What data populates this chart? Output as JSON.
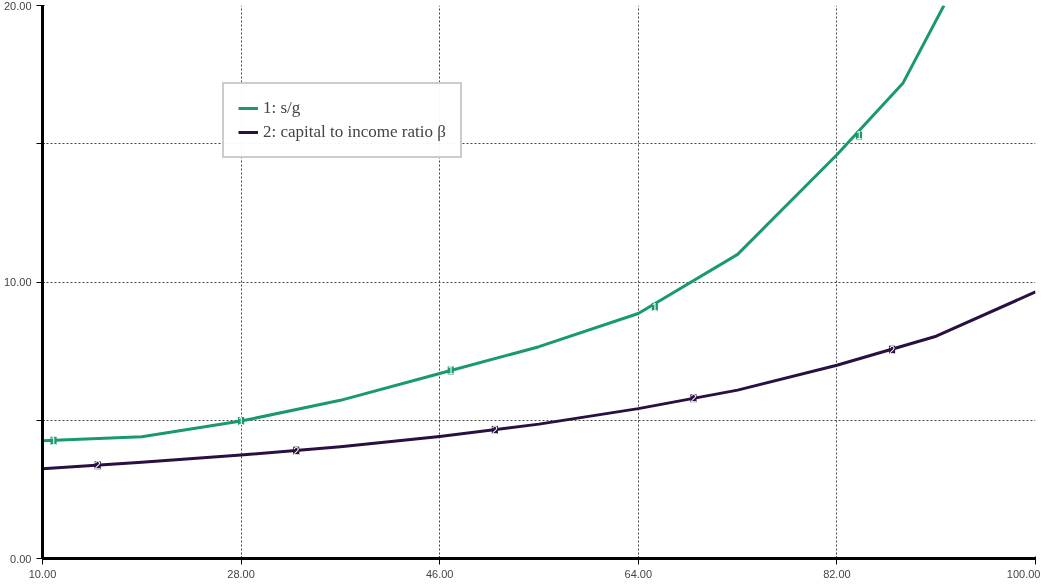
{
  "chart_data": {
    "type": "line",
    "x": [
      10,
      19,
      28,
      37,
      46,
      55,
      64,
      73,
      82,
      88,
      91.7
    ],
    "series": [
      {
        "name": "1: s/g",
        "color": "#1a9a6a",
        "values": [
          4.26,
          4.4,
          4.97,
          5.72,
          6.69,
          7.66,
          8.86,
          11.0,
          14.6,
          17.2,
          20
        ]
      },
      {
        "name": "2: capital to income ratio β",
        "color": "#2a1040",
        "x": [
          10,
          19,
          28,
          37,
          46,
          55,
          64,
          73,
          82,
          91,
          100
        ],
        "values": [
          3.25,
          3.48,
          3.74,
          4.04,
          4.41,
          4.86,
          5.42,
          6.09,
          6.99,
          8.04,
          9.64
        ]
      }
    ],
    "xlim": [
      10,
      100
    ],
    "ylim": [
      0,
      20
    ],
    "xticks": [
      {
        "value": 10,
        "label": "10.00"
      },
      {
        "value": 28,
        "label": "28.00"
      },
      {
        "value": 46,
        "label": "46.00"
      },
      {
        "value": 64,
        "label": "64.00"
      },
      {
        "value": 82,
        "label": "82.00"
      },
      {
        "value": 100,
        "label": "100.00"
      }
    ],
    "yticks": [
      {
        "value": 0,
        "label": "0.00"
      },
      {
        "value": 5,
        "label": null
      },
      {
        "value": 10,
        "label": "10.00"
      },
      {
        "value": 15,
        "label": null
      },
      {
        "value": 20,
        "label": "20.00"
      }
    ],
    "annotations": [
      {
        "text": "1",
        "x": 11,
        "y": 4.26
      },
      {
        "text": "1",
        "x": 28,
        "y": 4.97
      },
      {
        "text": "1",
        "x": 47,
        "y": 6.8
      },
      {
        "text": "1",
        "x": 65.5,
        "y": 9.1
      },
      {
        "text": "1",
        "x": 84,
        "y": 15.3
      },
      {
        "text": "2",
        "x": 15,
        "y": 3.37
      },
      {
        "text": "2",
        "x": 33,
        "y": 3.9
      },
      {
        "text": "2",
        "x": 51,
        "y": 4.65
      },
      {
        "text": "2",
        "x": 69,
        "y": 5.8
      },
      {
        "text": "2",
        "x": 87,
        "y": 7.55
      }
    ],
    "grid": true,
    "legend": "top left",
    "line_style": "solid",
    "marker": "none"
  }
}
